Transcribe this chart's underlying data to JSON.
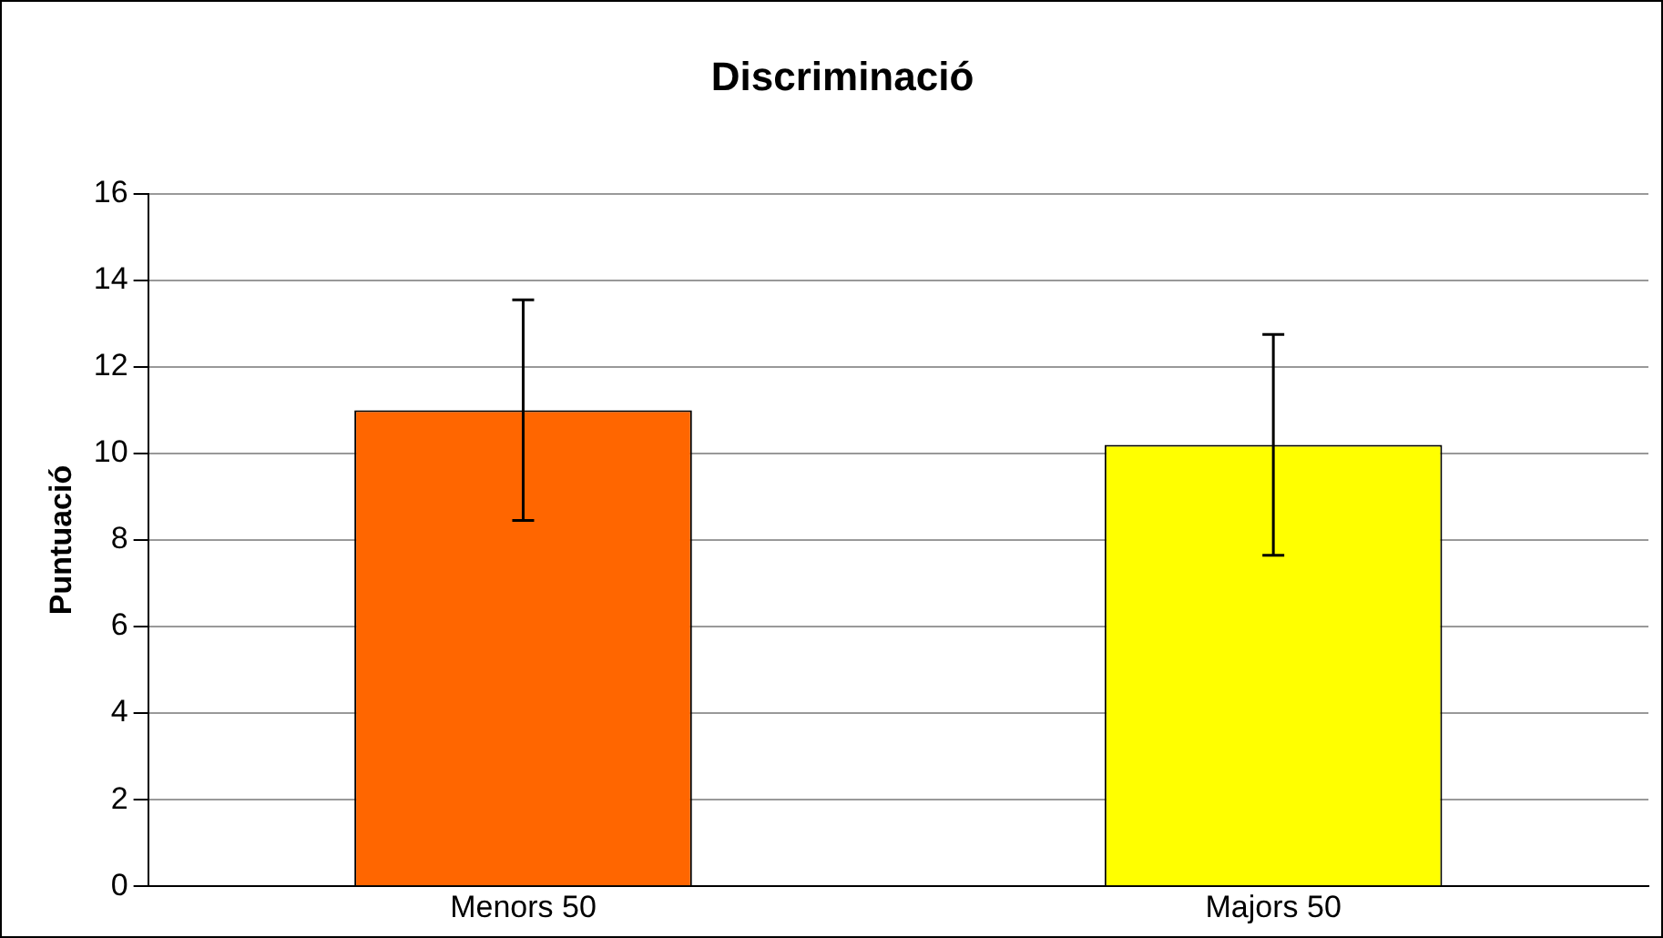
{
  "chart_data": {
    "type": "bar",
    "title": "Discriminació",
    "ylabel": "Puntuació",
    "categories": [
      "Menors 50",
      "Majors 50"
    ],
    "values": [
      11.0,
      10.2
    ],
    "colors": [
      "#ff6600",
      "#ffff00"
    ],
    "errors": [
      2.55,
      2.55
    ],
    "ylim": [
      0,
      16
    ],
    "yticks": [
      0,
      2,
      4,
      6,
      8,
      10,
      12,
      14,
      16
    ],
    "grid": "y",
    "legend": false
  }
}
